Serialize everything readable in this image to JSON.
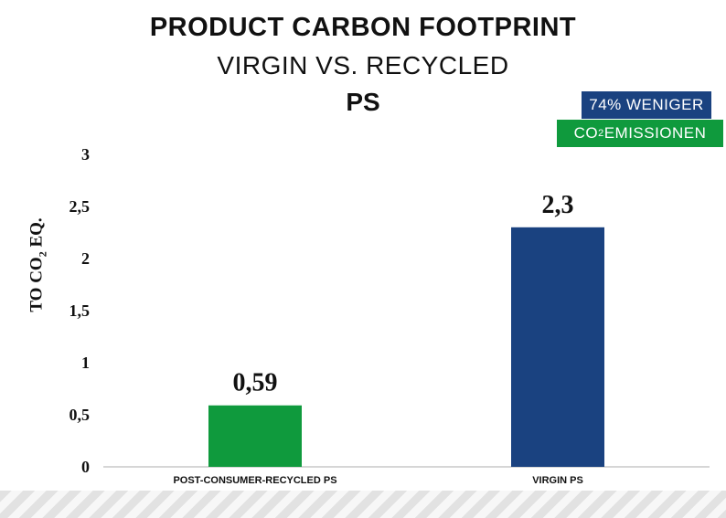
{
  "chart_data": {
    "type": "bar",
    "title": "PRODUCT CARBON FOOTPRINT",
    "subtitle": "VIRGIN VS. RECYCLED",
    "material": "PS",
    "ylabel": {
      "prefix": "TO CO",
      "sub": "2",
      "suffix": " EQ."
    },
    "xlabel": "",
    "categories": [
      "POST-CONSUMER-RECYCLED PS",
      "VIRGIN PS"
    ],
    "values": [
      0.59,
      2.3
    ],
    "value_labels": [
      "0,59",
      "2,3"
    ],
    "bar_colors": [
      "#0f9a3d",
      "#1a4280"
    ],
    "ylim": [
      0,
      3
    ],
    "yticks": [
      0,
      0.5,
      1,
      1.5,
      2,
      2.5,
      3
    ],
    "ytick_labels": [
      "0",
      "0,5",
      "1",
      "1,5",
      "2",
      "2,5",
      "3"
    ],
    "grid": false
  },
  "badges": {
    "reduction": "74% WENIGER",
    "emissions": {
      "prefix": "CO",
      "sub": "2",
      "suffix": " EMISSIONEN"
    }
  },
  "colors": {
    "green": "#0f9a3d",
    "blue": "#1a4280"
  }
}
